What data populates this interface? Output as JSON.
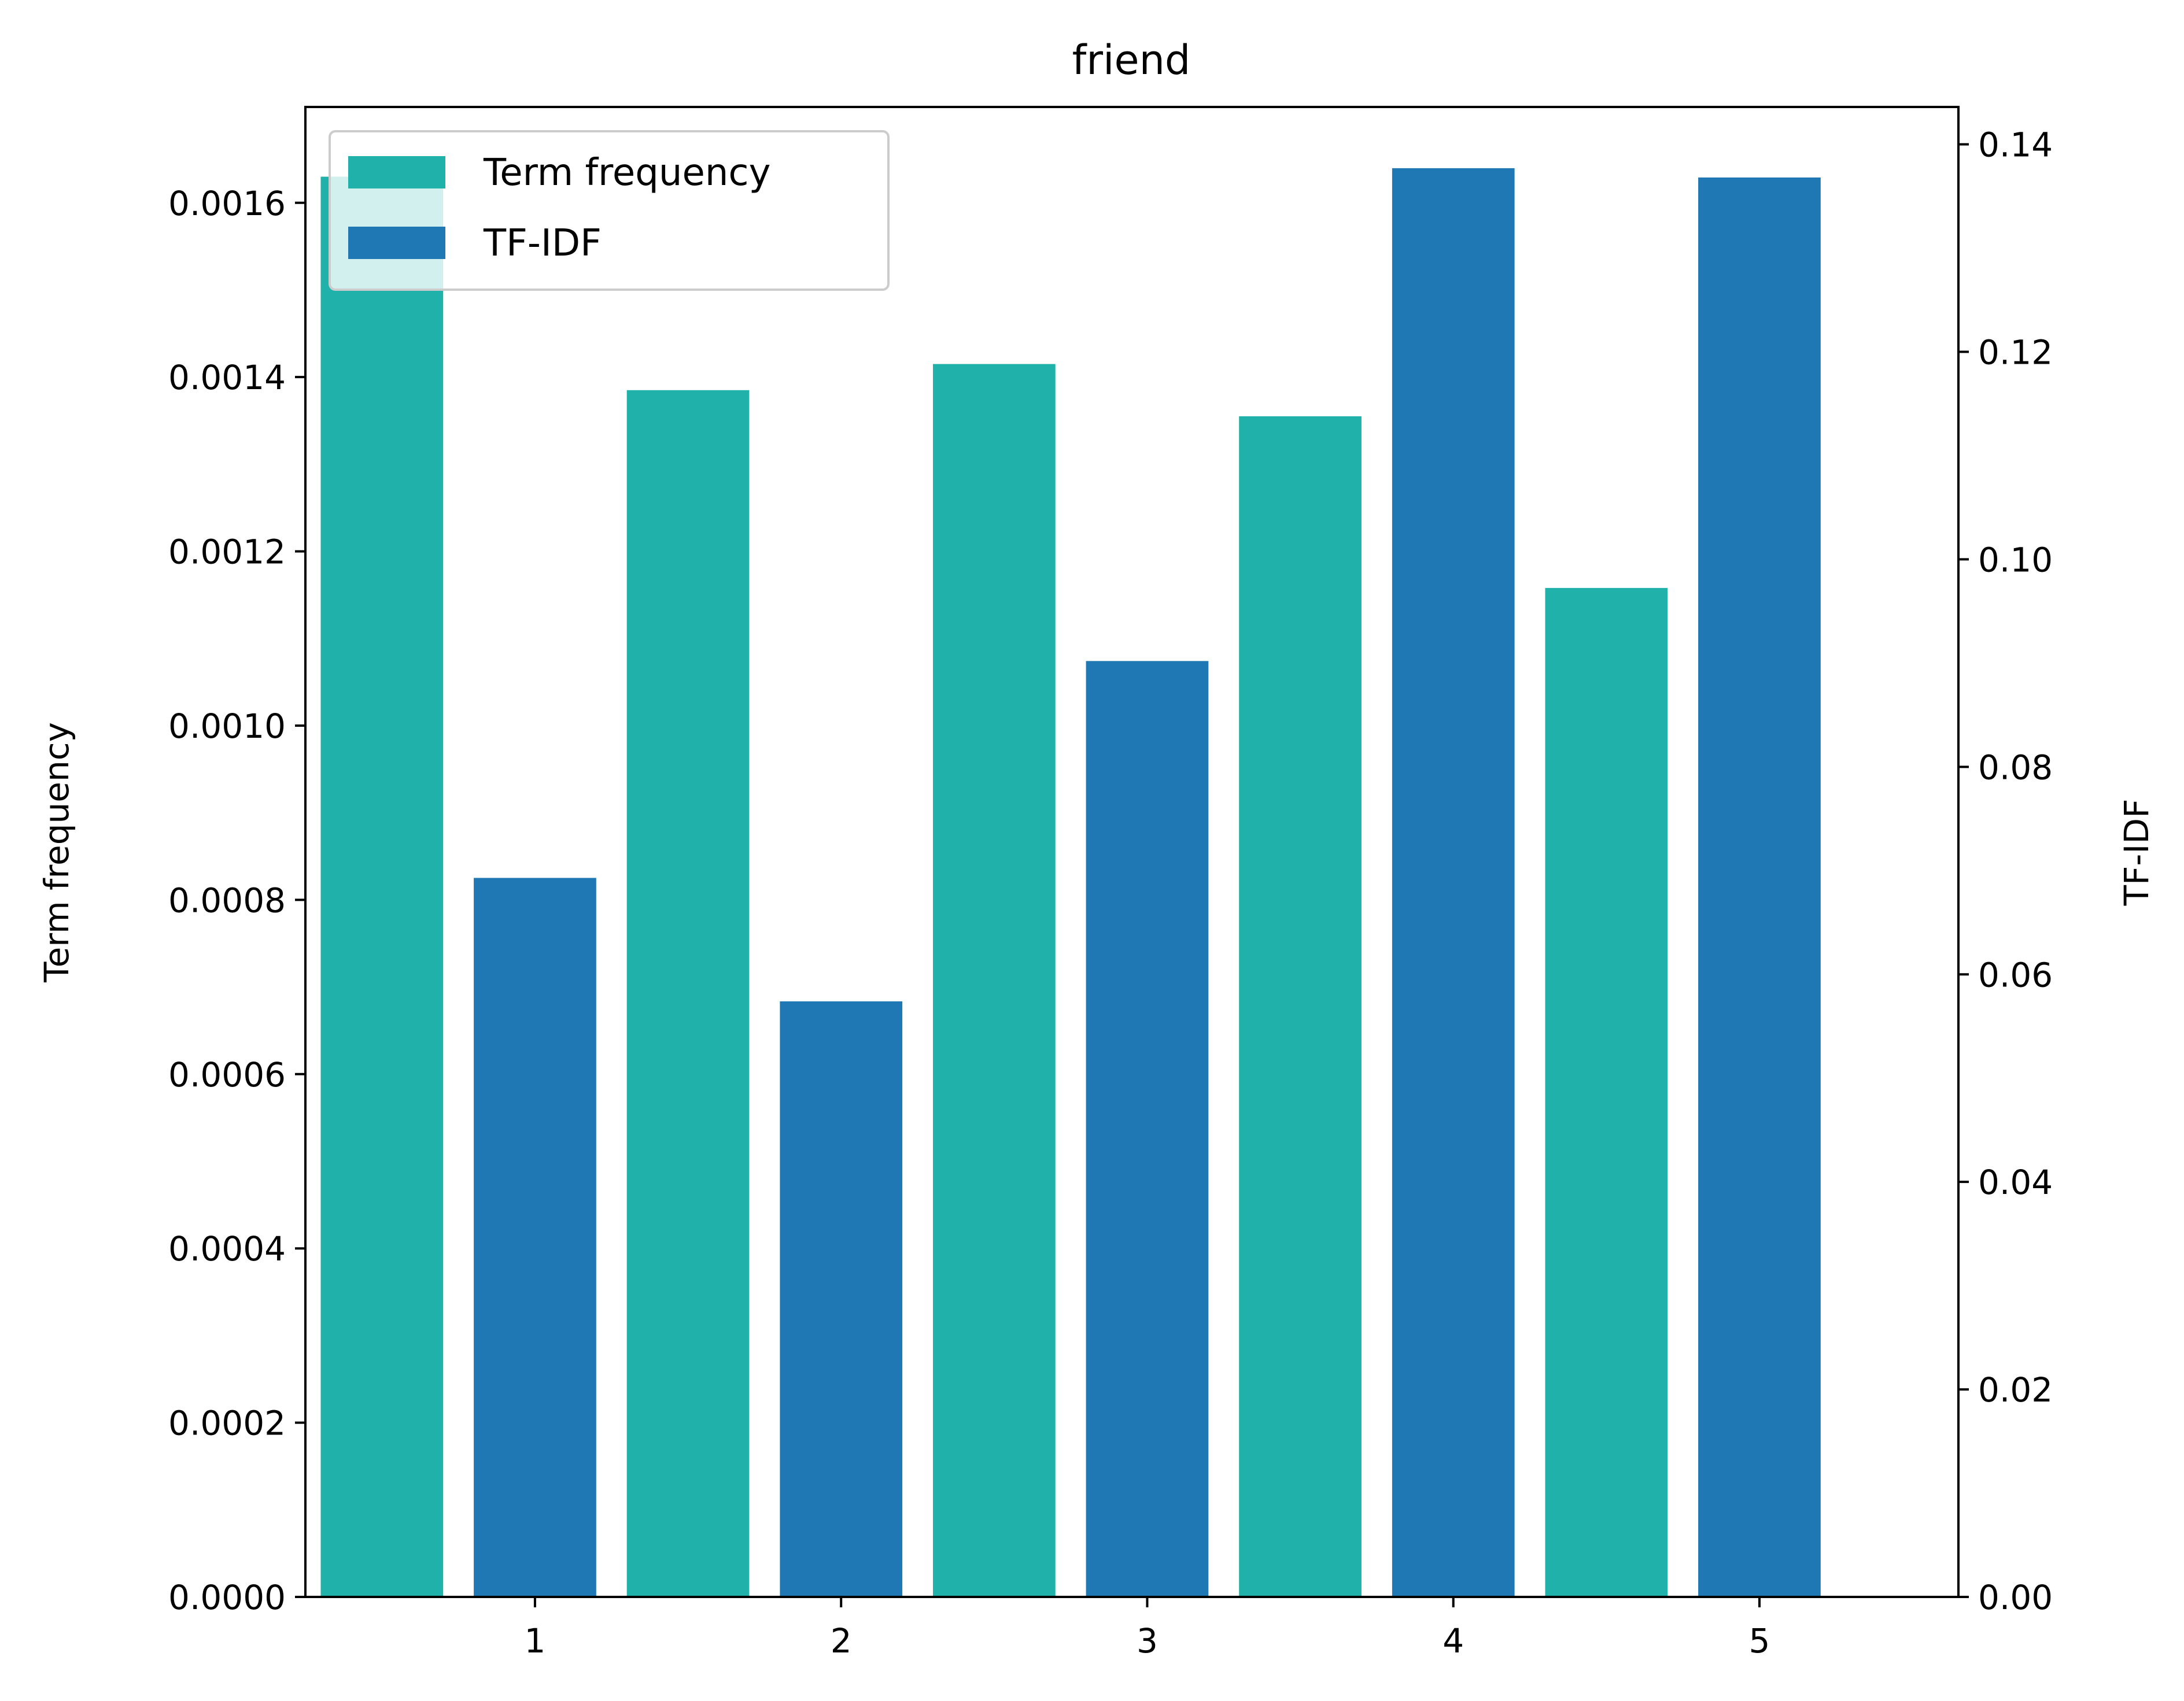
{
  "chart_data": {
    "type": "bar",
    "title": "friend",
    "categories": [
      "1",
      "2",
      "3",
      "4",
      "5"
    ],
    "x": [
      1,
      2,
      3,
      4,
      5
    ],
    "series": [
      {
        "name": "Term frequency",
        "axis": "left",
        "color": "#20b2aa",
        "values": [
          0.00163,
          0.001385,
          0.001415,
          0.001355,
          0.001158
        ]
      },
      {
        "name": "TF-IDF",
        "axis": "right",
        "color": "#1f77b4",
        "values": [
          0.0693,
          0.0574,
          0.0902,
          0.1377,
          0.1368
        ]
      }
    ],
    "left_axis": {
      "label": "Term frequency",
      "ylim": [
        0,
        0.00171
      ],
      "ticks": [
        0,
        0.0002,
        0.0004,
        0.0006,
        0.0008,
        0.001,
        0.0012,
        0.0014,
        0.0016
      ],
      "tick_labels": [
        "0.0000",
        "0.0002",
        "0.0004",
        "0.0006",
        "0.0008",
        "0.0010",
        "0.0012",
        "0.0014",
        "0.0016"
      ]
    },
    "right_axis": {
      "label": "TF-IDF",
      "ylim": [
        0,
        0.1436
      ],
      "ticks": [
        0,
        0.02,
        0.04,
        0.06,
        0.08,
        0.1,
        0.12,
        0.14
      ],
      "tick_labels": [
        "0.00",
        "0.02",
        "0.04",
        "0.06",
        "0.08",
        "0.10",
        "0.12",
        "0.14"
      ]
    },
    "x_axis": {
      "label": "",
      "xlim": [
        0.25,
        5.65
      ],
      "ticks": [
        1,
        2,
        3,
        4,
        5
      ],
      "tick_labels": [
        "1",
        "2",
        "3",
        "4",
        "5"
      ]
    },
    "legend": {
      "position": "upper-left",
      "entries": [
        "Term frequency",
        "TF-IDF"
      ]
    },
    "grid": false
  }
}
